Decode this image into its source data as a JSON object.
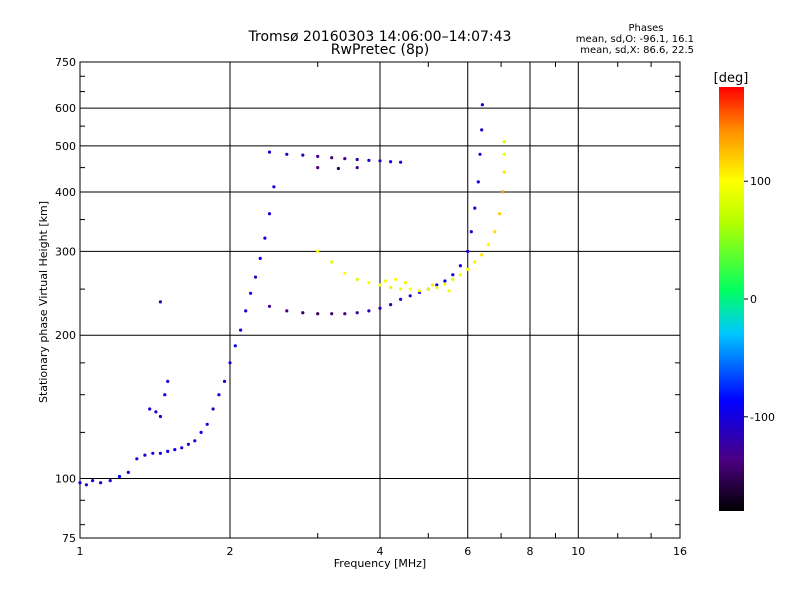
{
  "header": {
    "title": "Tromsø 20160303 14:06:00–14:07:43",
    "subtitle": "RwPretec (8p)"
  },
  "stats": {
    "heading": "Phases",
    "line_o": "mean, sd,O: -96.1, 16.1",
    "line_x": "mean, sd,X:  86.6, 22.5"
  },
  "colorbar": {
    "unit_label": "[deg]",
    "range": [
      -180,
      180
    ],
    "ticks": [
      100,
      0,
      -100
    ],
    "tick_labels": [
      "100",
      "0",
      "-100"
    ]
  },
  "chart_data": {
    "type": "scatter",
    "title": "Tromsø 20160303 14:06:00–14:07:43",
    "subtitle": "RwPretec (8p)",
    "xlabel": "Frequency [MHz]",
    "ylabel": "Stationary phase Virtual Height [km]",
    "x_scale": "log",
    "y_scale": "log",
    "xlim": [
      1,
      16
    ],
    "ylim": [
      75,
      750
    ],
    "x_ticks": [
      1,
      2,
      4,
      6,
      8,
      10,
      16
    ],
    "x_tick_labels": [
      "1",
      "2",
      "4",
      "6",
      "8",
      "10",
      "16"
    ],
    "y_ticks": [
      75,
      100,
      200,
      300,
      400,
      500,
      600,
      750
    ],
    "y_tick_labels": [
      "75",
      "100",
      "200",
      "300",
      "400",
      "500",
      "600",
      "750"
    ],
    "grid": true,
    "color_scale": "phase in degrees, -180 (black/violet) to 180 (red)",
    "series": [
      {
        "mode": "O",
        "points": [
          [
            1.0,
            98,
            -100
          ],
          [
            1.03,
            97,
            -110
          ],
          [
            1.06,
            99,
            -95
          ],
          [
            1.1,
            98,
            -100
          ],
          [
            1.15,
            99,
            -105
          ],
          [
            1.2,
            101,
            -90
          ],
          [
            1.25,
            103,
            -100
          ],
          [
            1.3,
            110,
            -95
          ],
          [
            1.35,
            112,
            -110
          ],
          [
            1.4,
            113,
            -100
          ],
          [
            1.45,
            113,
            -105
          ],
          [
            1.5,
            114,
            -100
          ],
          [
            1.55,
            115,
            -95
          ],
          [
            1.6,
            116,
            -100
          ],
          [
            1.65,
            118,
            -105
          ],
          [
            1.7,
            120,
            -100
          ],
          [
            1.75,
            125,
            -95
          ],
          [
            1.8,
            130,
            -100
          ],
          [
            1.85,
            140,
            -105
          ],
          [
            1.9,
            150,
            -100
          ],
          [
            1.95,
            160,
            -110
          ],
          [
            2.0,
            175,
            -100
          ],
          [
            2.05,
            190,
            -95
          ],
          [
            2.1,
            205,
            -100
          ],
          [
            2.15,
            225,
            -105
          ],
          [
            2.2,
            245,
            -100
          ],
          [
            2.25,
            265,
            -110
          ],
          [
            2.3,
            290,
            -95
          ],
          [
            2.35,
            320,
            -100
          ],
          [
            2.4,
            360,
            -105
          ],
          [
            2.45,
            410,
            -100
          ],
          [
            1.38,
            140,
            -100
          ],
          [
            1.42,
            138,
            -110
          ],
          [
            1.45,
            135,
            -105
          ],
          [
            1.48,
            150,
            -95
          ],
          [
            1.5,
            160,
            -100
          ],
          [
            1.45,
            235,
            -120
          ],
          [
            2.4,
            230,
            -130
          ],
          [
            2.6,
            225,
            -140
          ],
          [
            2.8,
            223,
            -150
          ],
          [
            3.0,
            222,
            -150
          ],
          [
            3.2,
            222,
            -140
          ],
          [
            3.4,
            222,
            -135
          ],
          [
            3.6,
            223,
            -130
          ],
          [
            3.8,
            225,
            -120
          ],
          [
            4.0,
            228,
            -115
          ],
          [
            4.2,
            232,
            -110
          ],
          [
            4.4,
            238,
            -105
          ],
          [
            4.6,
            242,
            -100
          ],
          [
            4.8,
            246,
            -95
          ],
          [
            5.0,
            250,
            -100
          ],
          [
            5.2,
            255,
            -95
          ],
          [
            5.4,
            260,
            -90
          ],
          [
            5.6,
            268,
            -100
          ],
          [
            5.8,
            280,
            -95
          ],
          [
            6.0,
            300,
            -100
          ],
          [
            6.1,
            330,
            -105
          ],
          [
            6.2,
            370,
            -100
          ],
          [
            6.3,
            420,
            -95
          ],
          [
            6.35,
            480,
            -100
          ],
          [
            6.4,
            540,
            -105
          ],
          [
            6.42,
            610,
            -100
          ],
          [
            2.4,
            485,
            -110
          ],
          [
            2.6,
            480,
            -115
          ],
          [
            2.8,
            478,
            -120
          ],
          [
            3.0,
            475,
            -130
          ],
          [
            3.2,
            472,
            -140
          ],
          [
            3.4,
            470,
            -130
          ],
          [
            3.6,
            468,
            -120
          ],
          [
            3.8,
            466,
            -115
          ],
          [
            4.0,
            465,
            -110
          ],
          [
            4.2,
            463,
            -105
          ],
          [
            4.4,
            462,
            -100
          ],
          [
            3.0,
            450,
            -140
          ],
          [
            3.3,
            448,
            -150
          ],
          [
            3.6,
            450,
            -135
          ]
        ]
      },
      {
        "mode": "X",
        "points": [
          [
            3.0,
            300,
            95
          ],
          [
            3.2,
            285,
            90
          ],
          [
            3.4,
            270,
            100
          ],
          [
            3.6,
            262,
            85
          ],
          [
            3.8,
            258,
            95
          ],
          [
            4.0,
            255,
            100
          ],
          [
            4.2,
            252,
            90
          ],
          [
            4.4,
            250,
            95
          ],
          [
            4.6,
            250,
            100
          ],
          [
            4.8,
            248,
            105
          ],
          [
            5.0,
            250,
            95
          ],
          [
            5.2,
            252,
            90
          ],
          [
            5.4,
            256,
            100
          ],
          [
            5.6,
            262,
            85
          ],
          [
            5.8,
            268,
            95
          ],
          [
            6.0,
            275,
            100
          ],
          [
            6.2,
            285,
            105
          ],
          [
            6.4,
            295,
            110
          ],
          [
            6.6,
            310,
            100
          ],
          [
            6.8,
            330,
            115
          ],
          [
            6.95,
            360,
            120
          ],
          [
            7.05,
            400,
            140
          ],
          [
            7.1,
            440,
            110
          ],
          [
            7.1,
            480,
            90
          ],
          [
            7.1,
            510,
            80
          ],
          [
            4.1,
            260,
            95
          ],
          [
            4.3,
            262,
            100
          ],
          [
            4.5,
            258,
            105
          ],
          [
            5.1,
            255,
            110
          ],
          [
            5.5,
            248,
            95
          ]
        ]
      }
    ]
  }
}
